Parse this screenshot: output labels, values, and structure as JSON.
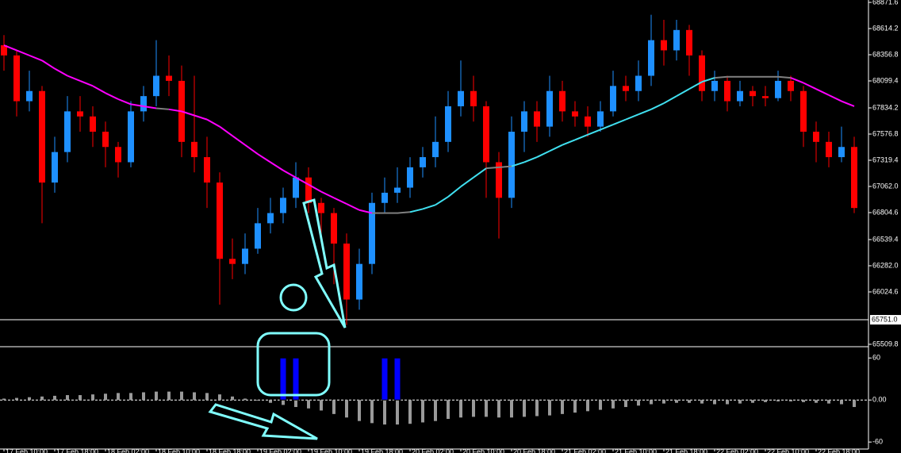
{
  "chart_data": [
    {
      "type": "candlestick",
      "x": [
        "17 Feb 10:00",
        null,
        null,
        null,
        "17 Feb 18:00",
        null,
        null,
        null,
        "18 Feb 02:00",
        null,
        null,
        null,
        "18 Feb 10:00",
        null,
        null,
        null,
        "18 Feb 18:00",
        null,
        null,
        null,
        "19 Feb 02:00",
        null,
        null,
        null,
        "19 Feb 10:00",
        null,
        null,
        null,
        "19 Feb 18:00",
        null,
        null,
        null,
        "20 Feb 02:00",
        null,
        null,
        null,
        "20 Feb 10:00",
        null,
        null,
        null,
        "20 Feb 18:00",
        null,
        null,
        null,
        "21 Feb 02:00",
        null,
        null,
        null,
        "21 Feb 10:00",
        null,
        null,
        null,
        "21 Feb 18:00",
        null,
        null,
        null,
        "22 Feb 02:00",
        null,
        null,
        null,
        "22 Feb 10:00",
        null,
        null,
        null,
        "22 Feb 18:00",
        null,
        null,
        null
      ],
      "open": [
        68450,
        68350,
        67900,
        68000,
        67100,
        67400,
        67800,
        67750,
        67600,
        67450,
        67300,
        67800,
        67950,
        68150,
        68100,
        67500,
        67350,
        67100,
        66350,
        66300,
        66450,
        66700,
        66800,
        66950,
        67150,
        66900,
        66800,
        66500,
        65950,
        66300,
        66900,
        67000,
        67050,
        67250,
        67350,
        67500,
        67850,
        68000,
        67850,
        67300,
        66950,
        67600,
        67800,
        67650,
        68000,
        67800,
        67750,
        67650,
        67800,
        68050,
        68000,
        68150,
        68500,
        68400,
        68600,
        68350,
        68000,
        68100,
        67900,
        68000,
        67950,
        67930,
        68100,
        68000,
        67600,
        67500,
        67350,
        67450
      ],
      "high": [
        68550,
        68400,
        68200,
        68050,
        67550,
        67950,
        67950,
        67850,
        67700,
        67500,
        67900,
        68050,
        68500,
        68350,
        68250,
        68150,
        67550,
        67200,
        66550,
        66600,
        66850,
        66950,
        67050,
        67300,
        67250,
        66950,
        66850,
        66600,
        66450,
        67000,
        67150,
        67250,
        67350,
        67450,
        67750,
        68000,
        68300,
        68150,
        67900,
        67400,
        67750,
        67900,
        67900,
        68150,
        68100,
        67900,
        67850,
        67900,
        68200,
        68150,
        68300,
        68750,
        68700,
        68700,
        68650,
        68400,
        68200,
        68150,
        68100,
        68050,
        68050,
        68200,
        68150,
        68050,
        67700,
        67600,
        67650,
        67550
      ],
      "low": [
        68200,
        67750,
        67800,
        66700,
        67000,
        67300,
        67600,
        67450,
        67250,
        67150,
        67250,
        67700,
        67850,
        67950,
        67350,
        67200,
        66850,
        65900,
        66150,
        66200,
        66400,
        66600,
        66700,
        66850,
        66800,
        66600,
        66100,
        65700,
        65850,
        66200,
        66800,
        66900,
        66950,
        67150,
        67250,
        67400,
        67750,
        67700,
        66950,
        66550,
        66850,
        67400,
        67500,
        67550,
        67700,
        67650,
        67550,
        67600,
        67750,
        67900,
        67900,
        68050,
        68250,
        68300,
        68150,
        67900,
        67900,
        67800,
        67850,
        67850,
        67850,
        67900,
        67900,
        67450,
        67300,
        67250,
        67300,
        66800
      ],
      "close": [
        68350,
        67900,
        68000,
        67100,
        67400,
        67800,
        67750,
        67600,
        67450,
        67300,
        67800,
        67950,
        68150,
        68100,
        67500,
        67350,
        67100,
        66350,
        66300,
        66450,
        66700,
        66800,
        66950,
        67150,
        66900,
        66800,
        66500,
        65950,
        66300,
        66900,
        67000,
        67050,
        67250,
        67350,
        67500,
        67850,
        68000,
        67850,
        67300,
        66950,
        67600,
        67800,
        67650,
        68000,
        67800,
        67750,
        67650,
        67800,
        68050,
        68000,
        68150,
        68500,
        68400,
        68600,
        68350,
        68000,
        68100,
        67900,
        68000,
        67950,
        67930,
        68100,
        68000,
        67600,
        67500,
        67350,
        67450,
        66850
      ],
      "colors": {
        "up": "#1e90ff",
        "down": "#ff0000"
      },
      "moving_average": {
        "values": [
          68450,
          68400,
          68350,
          68300,
          68220,
          68150,
          68100,
          68050,
          67980,
          67920,
          67870,
          67850,
          67830,
          67820,
          67800,
          67760,
          67720,
          67650,
          67560,
          67470,
          67380,
          67300,
          67220,
          67150,
          67080,
          67010,
          66950,
          66890,
          66830,
          66800,
          66800,
          66800,
          66810,
          66840,
          66880,
          66960,
          67060,
          67150,
          67240,
          67250,
          67260,
          67300,
          67350,
          67410,
          67470,
          67520,
          67570,
          67620,
          67670,
          67720,
          67770,
          67820,
          67880,
          67950,
          68020,
          68090,
          68130,
          68140,
          68140,
          68140,
          68140,
          68140,
          68130,
          68080,
          68020,
          67960,
          67900,
          67850
        ],
        "colors": {
          "up": "#40e0f0",
          "down": "#ff00ff",
          "flat": "#808080"
        }
      },
      "price_line": {
        "value": 65751,
        "label": "65751.0"
      },
      "ylim": [
        65494,
        68895
      ],
      "yticks": [
        68871.6,
        68614.2,
        68356.8,
        68099.4,
        67834.2,
        67576.8,
        67319.4,
        {
          "value": 67062,
          "label": "67062.0"
        },
        66804.6,
        66539.4,
        {
          "value": 66282,
          "label": "66282.0"
        },
        66024.6,
        65509.8
      ]
    },
    {
      "type": "histogram-indicator",
      "values": [
        2,
        3,
        4,
        5,
        6,
        7,
        7,
        8,
        9,
        10,
        10,
        11,
        12,
        12,
        12,
        11,
        10,
        8,
        5,
        2,
        -1,
        -4,
        -7,
        -10,
        -12,
        -15,
        -20,
        -25,
        -30,
        -33,
        -35,
        -35,
        -34,
        -32,
        -30,
        -27,
        -25,
        -24,
        -24,
        -25,
        -25,
        -24,
        -23,
        -22,
        -20,
        -18,
        -16,
        -14,
        -12,
        -10,
        -8,
        -6,
        -5,
        -4,
        -4,
        -5,
        -6,
        -6,
        -5,
        -4,
        -3,
        -2,
        -2,
        -3,
        -4,
        -5,
        -6,
        -10
      ],
      "color": "#9a9a9a",
      "signal": {
        "values": [
          null,
          null,
          null,
          null,
          null,
          null,
          null,
          null,
          null,
          null,
          null,
          null,
          null,
          null,
          null,
          null,
          null,
          null,
          null,
          null,
          null,
          null,
          60,
          60,
          null,
          null,
          null,
          null,
          null,
          null,
          60,
          60,
          null,
          null,
          null,
          null,
          null,
          null,
          null,
          null,
          null,
          null,
          null,
          null,
          null,
          null,
          null,
          null,
          null,
          null,
          null,
          null,
          null,
          null,
          null,
          null,
          null,
          null,
          null,
          null,
          null,
          null,
          null,
          null,
          null,
          null,
          null,
          null
        ],
        "color": "#0000ff"
      },
      "ylim": [
        -70,
        75
      ],
      "yticks": [
        60,
        {
          "value": 0,
          "label": "0.00"
        },
        -60
      ]
    }
  ]
}
